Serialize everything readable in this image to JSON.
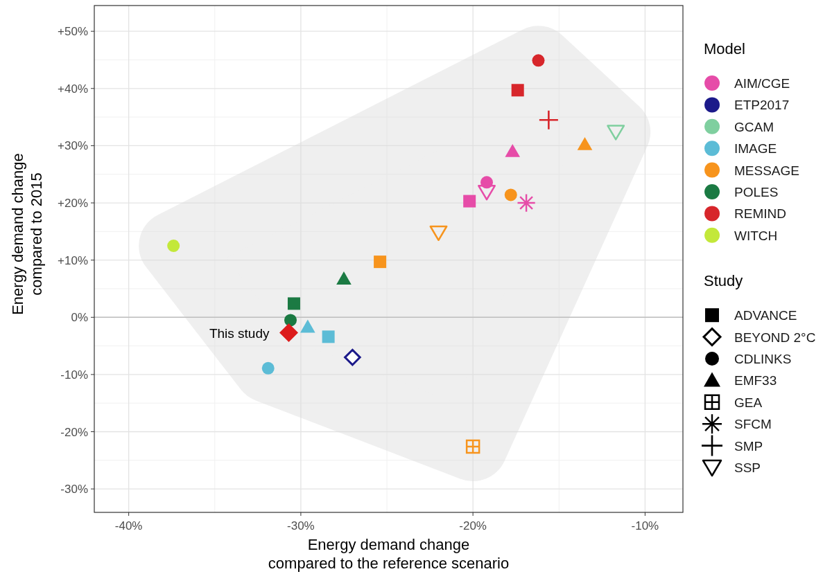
{
  "chart_data": {
    "type": "scatter",
    "xlabel": "Energy demand change\ncompared to the reference scenario",
    "ylabel": "Energy demand change\ncompared to 2015",
    "xlim": [
      -42,
      -7.8
    ],
    "ylim": [
      -34.1,
      54.5
    ],
    "xticks": [
      {
        "value": -40,
        "label": "-40%"
      },
      {
        "value": -30,
        "label": "-30%"
      },
      {
        "value": -20,
        "label": "-20%"
      },
      {
        "value": -10,
        "label": "-10%"
      }
    ],
    "yticks": [
      {
        "value": -30,
        "label": "-30%"
      },
      {
        "value": -20,
        "label": "-20%"
      },
      {
        "value": -10,
        "label": "-10%"
      },
      {
        "value": 0,
        "label": "0%"
      },
      {
        "value": 10,
        "label": "+10%"
      },
      {
        "value": 20,
        "label": "+20%"
      },
      {
        "value": 30,
        "label": "+30%"
      },
      {
        "value": 40,
        "label": "+40%"
      },
      {
        "value": 50,
        "label": "+50%"
      }
    ],
    "grid": true,
    "legend": "right",
    "legend_title": [
      "Model",
      "Study"
    ],
    "ref_lines": [
      {
        "axis": "y",
        "value": 0,
        "color": "#bfbfbf"
      }
    ],
    "annotations": [
      {
        "text": "This study",
        "x": -30.7,
        "y": -2.7
      }
    ],
    "series": [
      {
        "name": "AIM/CGE",
        "color": "#e64ca8",
        "x": [
          -17.7,
          -19.2,
          -19.2,
          -16.9,
          -20.2
        ],
        "values": [
          29.0,
          23.6,
          21.9,
          20.0,
          20.3
        ],
        "marker": [
          "triangle",
          "circle",
          "triangle-down",
          "star",
          "square"
        ]
      },
      {
        "name": "ETP2017",
        "color": "#1c1a8a",
        "x": [
          -27.0
        ],
        "values": [
          -7.0
        ],
        "marker": [
          "diamond"
        ]
      },
      {
        "name": "GCAM",
        "color": "#7fcf9f",
        "x": [
          -11.7
        ],
        "values": [
          32.4
        ],
        "marker": [
          "triangle-down"
        ]
      },
      {
        "name": "IMAGE",
        "color": "#5cbcd6",
        "x": [
          -29.6,
          -28.4,
          -31.9
        ],
        "values": [
          -1.7,
          -3.4,
          -8.9
        ],
        "marker": [
          "triangle",
          "square",
          "circle"
        ]
      },
      {
        "name": "MESSAGE",
        "color": "#f7941d",
        "x": [
          -13.5,
          -17.8,
          -22.0,
          -25.4,
          -20.0
        ],
        "values": [
          30.2,
          21.4,
          14.8,
          9.7,
          -22.6
        ],
        "marker": [
          "triangle",
          "circle",
          "triangle-down",
          "square",
          "square-cross"
        ]
      },
      {
        "name": "POLES",
        "color": "#1b7a43",
        "x": [
          -27.5,
          -30.4,
          -30.6
        ],
        "values": [
          6.7,
          2.4,
          -0.5
        ],
        "marker": [
          "triangle",
          "square",
          "circle"
        ]
      },
      {
        "name": "REMIND",
        "color": "#d7262b",
        "x": [
          -16.2,
          -17.4,
          -15.6
        ],
        "values": [
          44.9,
          39.7,
          34.5
        ],
        "marker": [
          "circle",
          "square",
          "cross"
        ]
      },
      {
        "name": "WITCH",
        "color": "#c3e83a",
        "x": [
          -37.4
        ],
        "values": [
          12.5
        ],
        "marker": [
          "circle"
        ]
      },
      {
        "color": "#dc1c1c",
        "x": [
          -30.7
        ],
        "values": [
          -2.7
        ],
        "marker": [
          "diamond-filled"
        ]
      },
      {
        "name": "ADVANCE",
        "color": "#000000",
        "marker": "square"
      },
      {
        "name": "BEYOND 2°C",
        "color": "#000000",
        "marker": "diamond"
      },
      {
        "name": "CDLINKS",
        "color": "#000000",
        "marker": "circle"
      },
      {
        "name": "EMF33",
        "color": "#000000",
        "marker": "triangle"
      },
      {
        "name": "GEA",
        "color": "#000000",
        "marker": "square-cross"
      },
      {
        "name": "SFCM",
        "color": "#000000",
        "marker": "star"
      },
      {
        "name": "SMP",
        "color": "#000000",
        "marker": "cross"
      },
      {
        "name": "SSP",
        "color": "#000000",
        "marker": "triangle-down"
      }
    ]
  }
}
